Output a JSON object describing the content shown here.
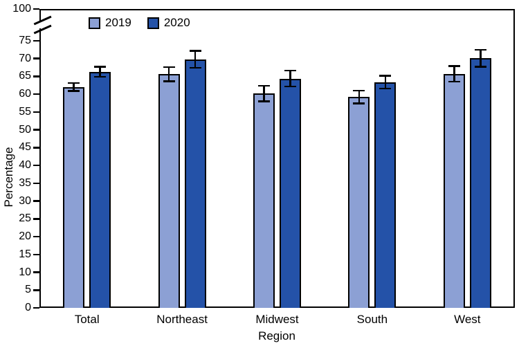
{
  "chart_data": {
    "type": "bar",
    "title": "",
    "xlabel": "Region",
    "ylabel": "Percentage",
    "categories": [
      "Total",
      "Northeast",
      "Midwest",
      "South",
      "West"
    ],
    "series": [
      {
        "name": "2019",
        "color": "#8CA0D4",
        "values": [
          62.0,
          65.6,
          60.2,
          59.2,
          65.7
        ],
        "ci_low": [
          60.9,
          63.6,
          58.0,
          57.4,
          63.5
        ],
        "ci_high": [
          63.1,
          67.6,
          62.4,
          61.0,
          67.9
        ]
      },
      {
        "name": "2020",
        "color": "#2452A8",
        "values": [
          66.3,
          69.8,
          64.4,
          63.4,
          70.1
        ],
        "ci_low": [
          64.9,
          67.4,
          62.2,
          61.6,
          67.7
        ],
        "ci_high": [
          67.7,
          72.2,
          66.6,
          65.2,
          72.5
        ]
      }
    ],
    "y_ticks": [
      0,
      5,
      10,
      15,
      20,
      25,
      30,
      35,
      40,
      45,
      50,
      55,
      60,
      65,
      70,
      75,
      100
    ],
    "ylim": [
      0,
      100
    ],
    "axis_break": {
      "between": [
        75,
        100
      ]
    },
    "error_bars": true,
    "legend_position": "top-left-inside",
    "grid": false
  }
}
